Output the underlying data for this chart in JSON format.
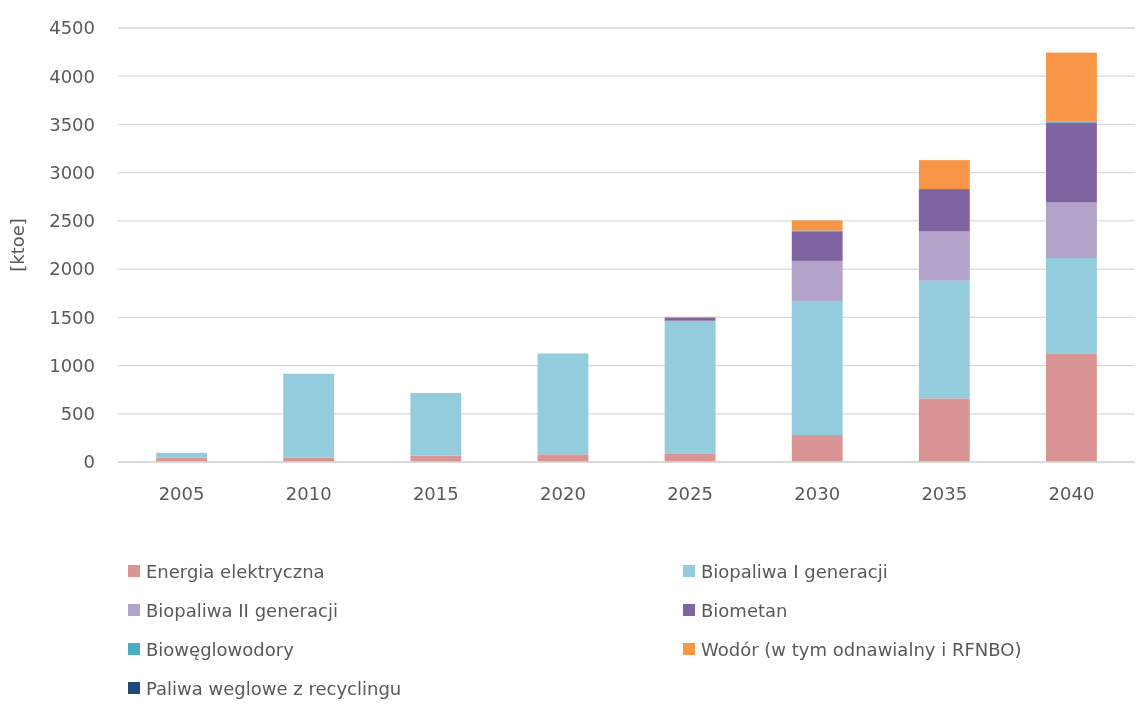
{
  "chart_data": {
    "type": "bar",
    "stacked": true,
    "ylabel": "[ktoe]",
    "categories": [
      "2005",
      "2010",
      "2015",
      "2020",
      "2025",
      "2030",
      "2035",
      "2040"
    ],
    "series": [
      {
        "name": "Energia elektryczna",
        "color": "#d99594",
        "values": [
          45,
          45,
          65,
          80,
          90,
          280,
          660,
          1120
        ]
      },
      {
        "name": "Biopaliwa I generacji",
        "color": "#93cddd",
        "values": [
          50,
          870,
          650,
          1045,
          1365,
          1390,
          1220,
          995
        ]
      },
      {
        "name": "Biopaliwa II generacji",
        "color": "#b3a2c7",
        "values": [
          0,
          0,
          0,
          0,
          10,
          415,
          510,
          575
        ]
      },
      {
        "name": "Biometan",
        "color": "#8064a2",
        "values": [
          0,
          0,
          0,
          0,
          30,
          300,
          440,
          830
        ]
      },
      {
        "name": "Biowęglowodory",
        "color": "#4bacc6",
        "values": [
          0,
          0,
          0,
          0,
          0,
          15,
          null,
          10
        ]
      },
      {
        "name": "Wodór (w tym odnawialny i RFNBO)",
        "color": "#f79646",
        "values": [
          0,
          0,
          0,
          0,
          10,
          105,
          300,
          715
        ]
      },
      {
        "name": "Paliwa weglowe z recyclingu",
        "color": "#1f497d",
        "values": [
          0,
          0,
          0,
          0,
          0,
          0,
          0,
          0
        ]
      }
    ],
    "ylim": [
      0,
      4500
    ],
    "yticks": [
      0,
      500,
      1000,
      1500,
      2000,
      2500,
      3000,
      3500,
      4000,
      4500
    ],
    "grid": "y",
    "legend": "bottom"
  }
}
